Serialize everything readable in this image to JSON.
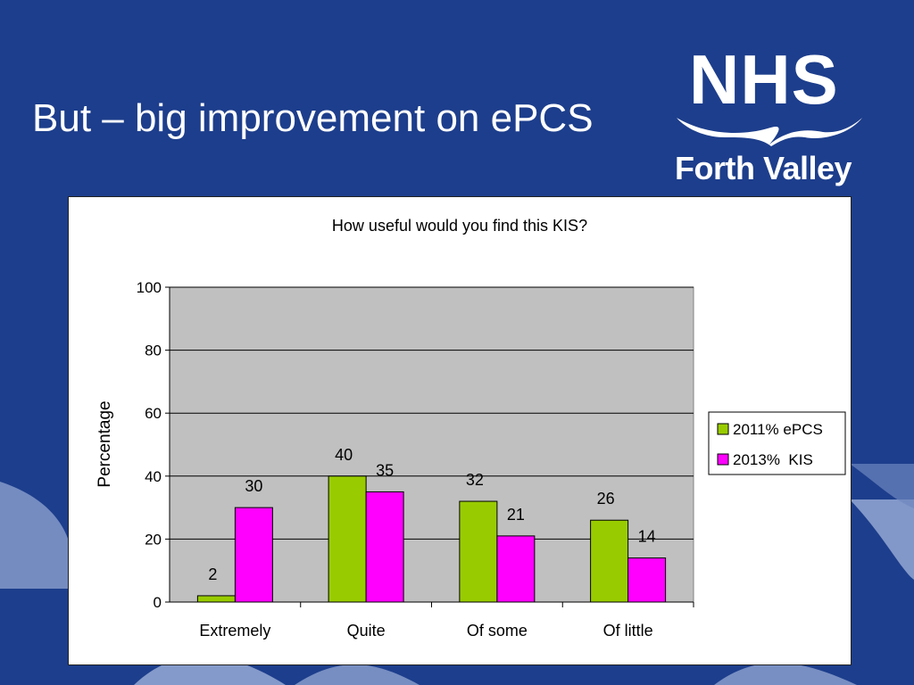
{
  "slide": {
    "title": "But – big improvement on ePCS",
    "logo": {
      "main": "NHS",
      "sub": "Forth Valley"
    }
  },
  "colors": {
    "background": "#1d3e8c",
    "series1": "#99cc00",
    "series2": "#ff00ff",
    "plot_area": "#c0c0c0"
  },
  "chart_data": {
    "type": "bar",
    "title": "How useful would you find this KIS?",
    "xlabel": "",
    "ylabel": "Percentage",
    "categories": [
      "Extremely",
      "Quite",
      "Of some",
      "Of little"
    ],
    "series": [
      {
        "name": "2011% ePCS",
        "values": [
          2,
          40,
          32,
          26
        ],
        "color": "#99cc00"
      },
      {
        "name": "2013%  KIS",
        "values": [
          30,
          35,
          21,
          14
        ],
        "color": "#ff00ff"
      }
    ],
    "ylim": [
      0,
      100
    ],
    "yticks": [
      0,
      20,
      40,
      60,
      80,
      100
    ],
    "grid": true,
    "legend": "right",
    "data_labels": true
  }
}
